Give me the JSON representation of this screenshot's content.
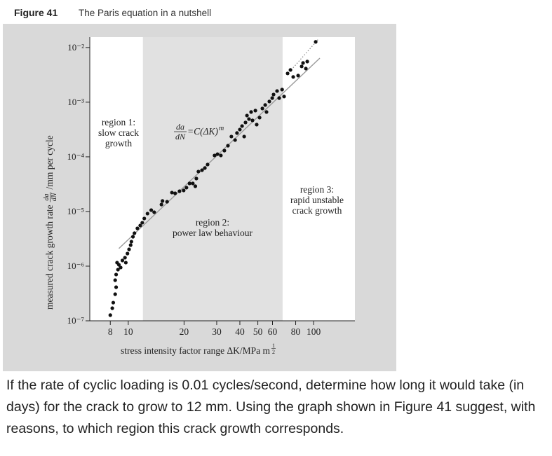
{
  "figure": {
    "label": "Figure 41",
    "caption": "The Paris equation in a nutshell"
  },
  "chart_data": {
    "type": "scatter",
    "log_x": true,
    "log_y": true,
    "ylabel": [
      "measured crack growth rate",
      "da",
      "dN",
      "/mm per cycle"
    ],
    "xlabel": [
      "stress intensity factor range ΔK/MPa m",
      "1",
      "2"
    ],
    "xlim": [
      6.2,
      167
    ],
    "ylim": [
      1e-07,
      0.0155
    ],
    "xticks": [
      8,
      10,
      20,
      30,
      40,
      50,
      60,
      80,
      100
    ],
    "yticks": [
      {
        "value": 0.01,
        "label": "10⁻²"
      },
      {
        "value": 0.001,
        "label": "10⁻³"
      },
      {
        "value": 0.0001,
        "label": "10⁻⁴"
      },
      {
        "value": 1e-05,
        "label": "10⁻⁵"
      },
      {
        "value": 1e-06,
        "label": "10⁻⁶"
      },
      {
        "value": 1e-07,
        "label": "10⁻⁷"
      }
    ],
    "shaded_xlim": [
      12,
      68
    ],
    "equation": [
      "da",
      "dN",
      "=C(ΔK)",
      "m"
    ],
    "region_1": [
      "region 1:",
      "slow crack",
      "growth"
    ],
    "region_2": [
      "region 2:",
      "power law behaviour"
    ],
    "region_3": [
      "region 3:",
      "rapid unstable",
      "crack growth"
    ],
    "color": "#111111",
    "x": [
      8.0,
      8.2,
      8.3,
      8.5,
      8.6,
      8.5,
      8.6,
      8.8,
      8.9,
      8.7,
      9.1,
      9.3,
      9.6,
      9.7,
      9.9,
      10.1,
      10.3,
      10.4,
      10.6,
      10.8,
      11.2,
      11.6,
      11.9,
      12.2,
      12.7,
      13.3,
      13.8,
      15.1,
      15.3,
      16.2,
      17.2,
      17.9,
      18.9,
      19.9,
      20.6,
      21.4,
      22.3,
      23.3,
      23.0,
      23.9,
      25.0,
      25.9,
      26.8,
      29.2,
      30.3,
      31.6,
      33.0,
      34.5,
      36.0,
      37.7,
      38.6,
      40.0,
      41.1,
      42.2,
      42.9,
      43.7,
      44.8,
      46.0,
      46.8,
      48.5,
      49.3,
      51.1,
      52.9,
      54.8,
      55.7,
      57.7,
      59.8,
      60.8,
      63.5,
      65.2,
      67.6,
      69.3,
      72.4,
      75.0,
      77.6,
      82.5,
      86.2,
      87.7,
      90.8,
      92.4,
      102.6
    ],
    "values": [
      1.27e-07,
      1.7e-07,
      2.15e-07,
      3.07e-07,
      4.12e-07,
      5.54e-07,
      7.02e-07,
      8.63e-07,
      1.06e-06,
      1.16e-06,
      9.43e-07,
      1.27e-06,
      1.43e-06,
      1.16e-06,
      1.7e-06,
      2.03e-06,
      2.43e-06,
      2.81e-06,
      3.45e-06,
      4.01e-06,
      4.92e-06,
      5.54e-06,
      6.24e-06,
      7.45e-06,
      9.16e-06,
      1.06e-05,
      9.71e-06,
      1.34e-05,
      1.56e-05,
      1.51e-05,
      2.22e-05,
      2.15e-05,
      2.35e-05,
      2.43e-05,
      2.73e-05,
      3.26e-05,
      3.26e-05,
      4.01e-05,
      2.9e-05,
      5.38e-05,
      5.7e-05,
      6.24e-05,
      7.23e-05,
      0.000106,
      0.000112,
      0.000106,
      0.00013,
      0.00016,
      0.000235,
      0.000203,
      0.000273,
      0.000316,
      0.000366,
      0.000235,
      0.000425,
      0.00057,
      0.000492,
      0.000662,
      0.000464,
      0.000702,
      0.000389,
      0.000522,
      0.000767,
      0.000889,
      0.000662,
      0.00103,
      0.00119,
      0.00138,
      0.0016,
      0.00119,
      0.0017,
      0.00127,
      0.00336,
      0.00389,
      0.0029,
      0.00307,
      0.00451,
      0.00522,
      0.00412,
      0.00554,
      0.0127
    ],
    "fit_line": {
      "color": "#9a9a9a",
      "x": [
        8.9,
        108
      ],
      "y": [
        2.1e-06,
        0.0064
      ]
    },
    "dotted_line": {
      "color": "#8a8a8a",
      "x": [
        75.7,
        107
      ],
      "y": [
        0.00389,
        0.0147
      ]
    }
  },
  "question": "If the rate of cyclic loading is 0.01 cycles/second, determine how long it would take (in days) for the crack to grow to 12 mm. Using the graph shown in Figure 41 suggest, with reasons, to which region this crack growth  corresponds."
}
